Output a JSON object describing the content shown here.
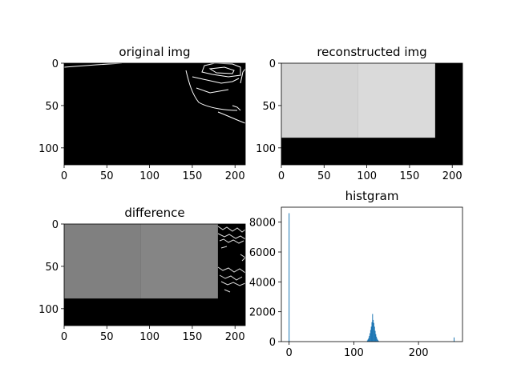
{
  "chart_data": [
    {
      "type": "image",
      "title": "original img",
      "image_extent": {
        "x": [
          0,
          212
        ],
        "y": [
          0,
          120
        ]
      },
      "x_ticks": [
        0,
        50,
        100,
        150,
        200
      ],
      "y_ticks": [
        0,
        50,
        100
      ],
      "content": "black background with thin white edge lines"
    },
    {
      "type": "image",
      "title": "reconstructed img",
      "image_extent": {
        "x": [
          0,
          212
        ],
        "y": [
          0,
          120
        ]
      },
      "x_ticks": [
        0,
        50,
        100,
        150,
        200
      ],
      "y_ticks": [
        0,
        50,
        100
      ],
      "regions": [
        {
          "x": [
            0,
            90
          ],
          "y": [
            0,
            88
          ],
          "gray": "#d4d4d4"
        },
        {
          "x": [
            90,
            180
          ],
          "y": [
            0,
            88
          ],
          "gray": "#dadada"
        }
      ]
    },
    {
      "type": "image",
      "title": "difference",
      "image_extent": {
        "x": [
          0,
          212
        ],
        "y": [
          0,
          120
        ]
      },
      "x_ticks": [
        0,
        50,
        100,
        150,
        200
      ],
      "y_ticks": [
        0,
        50,
        100
      ],
      "regions": [
        {
          "x": [
            0,
            90
          ],
          "y": [
            0,
            88
          ],
          "gray": "#808080"
        },
        {
          "x": [
            90,
            180
          ],
          "y": [
            0,
            88
          ],
          "gray": "#858585"
        }
      ]
    },
    {
      "type": "bar",
      "title": "histgram",
      "xlim": [
        -12,
        268
      ],
      "ylim": [
        0,
        9000
      ],
      "x_ticks": [
        0,
        100,
        200
      ],
      "y_ticks": [
        0,
        2000,
        4000,
        6000,
        8000
      ],
      "color": "#1f77b4",
      "bins": [
        {
          "x": 0,
          "y": 8600
        },
        {
          "x": 255,
          "y": 280
        },
        {
          "x": 121,
          "y": 80
        },
        {
          "x": 122,
          "y": 150
        },
        {
          "x": 123,
          "y": 240
        },
        {
          "x": 124,
          "y": 380
        },
        {
          "x": 125,
          "y": 560
        },
        {
          "x": 126,
          "y": 780
        },
        {
          "x": 127,
          "y": 1000
        },
        {
          "x": 128,
          "y": 1300
        },
        {
          "x": 129,
          "y": 1850
        },
        {
          "x": 130,
          "y": 1450
        },
        {
          "x": 131,
          "y": 1250
        },
        {
          "x": 132,
          "y": 1000
        },
        {
          "x": 133,
          "y": 720
        },
        {
          "x": 134,
          "y": 500
        },
        {
          "x": 135,
          "y": 330
        },
        {
          "x": 136,
          "y": 200
        },
        {
          "x": 137,
          "y": 120
        },
        {
          "x": 138,
          "y": 60
        }
      ]
    }
  ]
}
